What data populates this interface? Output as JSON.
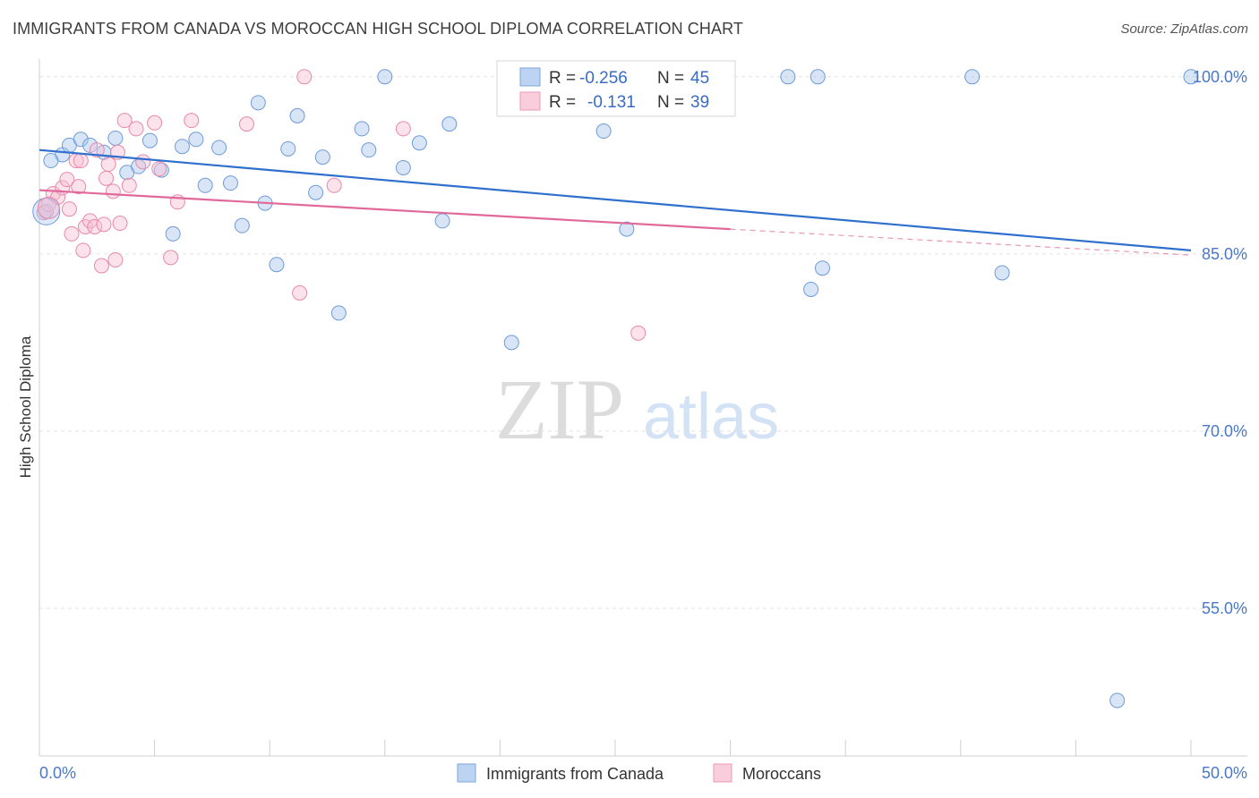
{
  "chart_data": {
    "type": "scatter",
    "title": "IMMIGRANTS FROM CANADA VS MOROCCAN HIGH SCHOOL DIPLOMA CORRELATION CHART",
    "source": "Source: ZipAtlas.com",
    "ylabel": "High School Diploma",
    "xlabel": "",
    "xlim": [
      0,
      50
    ],
    "ylim": [
      42.5,
      101.5
    ],
    "x_tick_labels": [
      "0.0%",
      "50.0%"
    ],
    "y_ticks": [
      100,
      85,
      70,
      55
    ],
    "y_tick_labels": [
      "100.0%",
      "85.0%",
      "70.0%",
      "55.0%"
    ],
    "watermark": {
      "zip": "ZIP",
      "atlas": "atlas"
    },
    "legend": {
      "r_label": "R =",
      "n_label": "N =",
      "entries": [
        {
          "r": "-0.256",
          "n": "45"
        },
        {
          "r": "-0.131",
          "n": "39"
        }
      ]
    },
    "series": [
      {
        "name": "Immigrants from Canada",
        "color": "#a9c6ee",
        "stroke": "#6f9bd8",
        "trend_color": "#2f6fce",
        "trend": {
          "x0": 0,
          "y0": 93.8,
          "x1": 50,
          "y1": 85.3,
          "dash_from": null
        },
        "points": [
          [
            0.3,
            88.6
          ],
          [
            1.0,
            93.4
          ],
          [
            1.3,
            94.2
          ],
          [
            1.8,
            94.7
          ],
          [
            2.2,
            94.2
          ],
          [
            2.8,
            93.6
          ],
          [
            3.3,
            94.8
          ],
          [
            3.8,
            91.9
          ],
          [
            4.3,
            92.4
          ],
          [
            4.8,
            94.6
          ],
          [
            5.3,
            92.1
          ],
          [
            5.8,
            86.7
          ],
          [
            6.2,
            94.1
          ],
          [
            6.8,
            94.7
          ],
          [
            7.2,
            90.8
          ],
          [
            7.8,
            94.0
          ],
          [
            8.3,
            91.0
          ],
          [
            8.8,
            87.4
          ],
          [
            9.5,
            97.8
          ],
          [
            9.8,
            89.3
          ],
          [
            10.3,
            84.1
          ],
          [
            10.8,
            93.9
          ],
          [
            11.2,
            96.7
          ],
          [
            12.0,
            90.2
          ],
          [
            12.3,
            93.2
          ],
          [
            13.0,
            80.0
          ],
          [
            14.0,
            95.6
          ],
          [
            14.3,
            93.8
          ],
          [
            15.0,
            100.0
          ],
          [
            15.8,
            92.3
          ],
          [
            16.5,
            94.4
          ],
          [
            17.5,
            87.8
          ],
          [
            17.8,
            96.0
          ],
          [
            20.5,
            77.5
          ],
          [
            24.5,
            95.4
          ],
          [
            25.5,
            87.1
          ],
          [
            32.5,
            100.0
          ],
          [
            33.5,
            82.0
          ],
          [
            33.8,
            100.0
          ],
          [
            34.0,
            83.8
          ],
          [
            40.5,
            100.0
          ],
          [
            41.8,
            83.4
          ],
          [
            50.0,
            100.0
          ],
          [
            46.8,
            47.2
          ],
          [
            0.5,
            92.9
          ]
        ]
      },
      {
        "name": "Moroccans",
        "color": "#f7bfd2",
        "stroke": "#e889a9",
        "trend_color": "#e0699a",
        "trend": {
          "x0": 0,
          "y0": 90.4,
          "x1": 30,
          "y1": 87.1,
          "dash_from": 30,
          "x2": 50,
          "y2": 84.9
        },
        "points": [
          [
            0.2,
            88.5
          ],
          [
            0.4,
            89.2
          ],
          [
            0.6,
            90.1
          ],
          [
            0.8,
            89.8
          ],
          [
            1.0,
            90.6
          ],
          [
            1.2,
            91.3
          ],
          [
            1.3,
            88.8
          ],
          [
            1.4,
            86.7
          ],
          [
            1.6,
            92.9
          ],
          [
            1.8,
            92.9
          ],
          [
            1.7,
            90.7
          ],
          [
            1.9,
            85.3
          ],
          [
            2.0,
            87.3
          ],
          [
            2.2,
            87.8
          ],
          [
            2.4,
            87.3
          ],
          [
            2.5,
            93.8
          ],
          [
            2.7,
            84.0
          ],
          [
            2.8,
            87.5
          ],
          [
            2.9,
            91.4
          ],
          [
            3.0,
            92.6
          ],
          [
            3.2,
            90.3
          ],
          [
            3.3,
            84.5
          ],
          [
            3.4,
            93.6
          ],
          [
            3.5,
            87.6
          ],
          [
            3.7,
            96.3
          ],
          [
            3.9,
            90.8
          ],
          [
            4.2,
            95.6
          ],
          [
            4.5,
            92.8
          ],
          [
            5.0,
            96.1
          ],
          [
            5.2,
            92.2
          ],
          [
            5.7,
            84.7
          ],
          [
            6.0,
            89.4
          ],
          [
            6.6,
            96.3
          ],
          [
            9.0,
            96.0
          ],
          [
            11.3,
            81.7
          ],
          [
            11.5,
            100.0
          ],
          [
            12.8,
            90.8
          ],
          [
            15.8,
            95.6
          ],
          [
            26.0,
            78.3
          ]
        ]
      }
    ]
  },
  "bottom_legend": [
    {
      "label": "Immigrants from Canada"
    },
    {
      "label": "Moroccans"
    }
  ]
}
